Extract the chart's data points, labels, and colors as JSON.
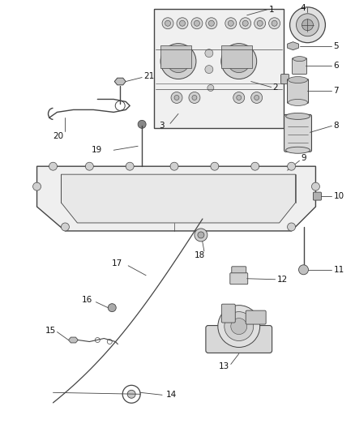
{
  "background_color": "#ffffff",
  "line_color": "#444444",
  "figsize": [
    4.38,
    5.33
  ],
  "dpi": 100,
  "label_fontsize": 7.5
}
